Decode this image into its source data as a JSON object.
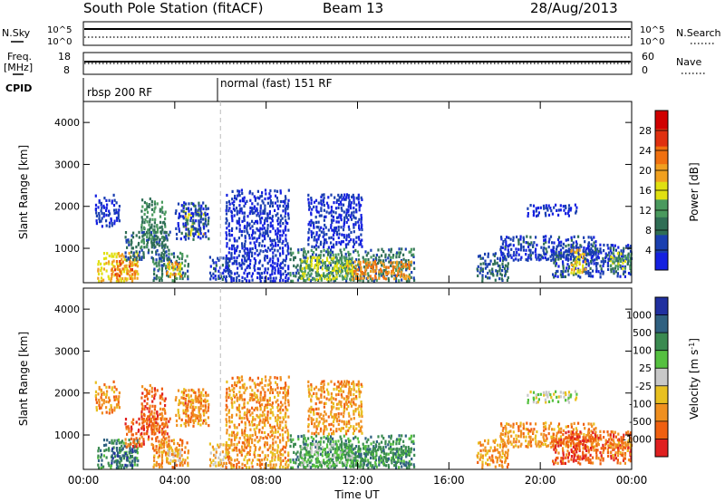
{
  "header": {
    "title": "South Pole Station (fitACF)",
    "beam": "Beam 13",
    "date": "28/Aug/2013"
  },
  "top_panels": {
    "noise": {
      "left_label": "N.Sky",
      "right_label": "N.Search",
      "left_ticks": [
        "10^5",
        "10^0"
      ],
      "right_ticks": [
        "10^5",
        "10^0"
      ]
    },
    "freq": {
      "left_label_1": "Freq.",
      "left_label_2": "[MHz]",
      "right_label": "Nave",
      "left_ticks": [
        "18",
        "8"
      ],
      "right_ticks": [
        "60",
        "0"
      ]
    },
    "cpid": {
      "label": "CPID",
      "segments": [
        {
          "start_hour": 0,
          "label": "rbsp 200 RF"
        },
        {
          "start_hour": 6,
          "label": "normal (fast) 151 RF"
        }
      ]
    }
  },
  "colors": {
    "power_scale": [
      "#1420e0",
      "#1a3fb0",
      "#2f6e55",
      "#4a9a5e",
      "#e0e010",
      "#f0a020",
      "#f07010",
      "#e03010",
      "#d00000"
    ],
    "velocity_scale": [
      "#2030a0",
      "#2f6080",
      "#3a8a50",
      "#55c040",
      "#c8c8c8",
      "#e8c020",
      "#f09020",
      "#f06010",
      "#e02020"
    ]
  },
  "chart_data": [
    {
      "type": "heatmap",
      "name": "power",
      "ylabel": "Slant Range [km]",
      "xlabel": "",
      "xlim": [
        0,
        24
      ],
      "ylim": [
        180,
        4500
      ],
      "y_ticks": [
        "1000",
        "2000",
        "3000",
        "4000"
      ],
      "x_ticks": [
        "00:00",
        "04:00",
        "08:00",
        "12:00",
        "16:00",
        "20:00",
        "00:00"
      ],
      "colorbar": {
        "label": "Power [dB]",
        "range": [
          0,
          32
        ],
        "ticks": [
          "4",
          "8",
          "12",
          "16",
          "20",
          "24",
          "28"
        ]
      },
      "regions": [
        {
          "t0": 0.5,
          "t1": 1.6,
          "r0": 1500,
          "r1": 2300,
          "v": 4
        },
        {
          "t0": 0.6,
          "t1": 2.4,
          "r0": 200,
          "r1": 900,
          "v": 20
        },
        {
          "t0": 1.2,
          "t1": 2.3,
          "r0": 250,
          "r1": 700,
          "v": 26
        },
        {
          "t0": 1.8,
          "t1": 3.8,
          "r0": 700,
          "r1": 1400,
          "v": 8
        },
        {
          "t0": 2.5,
          "t1": 3.6,
          "r0": 1000,
          "r1": 2200,
          "v": 12
        },
        {
          "t0": 3.0,
          "t1": 4.6,
          "r0": 200,
          "r1": 900,
          "v": 10
        },
        {
          "t0": 3.6,
          "t1": 4.3,
          "r0": 300,
          "r1": 700,
          "v": 22
        },
        {
          "t0": 4.4,
          "t1": 5.3,
          "r0": 1300,
          "r1": 1900,
          "v": 18
        },
        {
          "t0": 4.0,
          "t1": 5.5,
          "r0": 1200,
          "r1": 2100,
          "v": 6
        },
        {
          "t0": 5.5,
          "t1": 6.5,
          "r0": 250,
          "r1": 800,
          "v": 5
        },
        {
          "t0": 6.2,
          "t1": 9.0,
          "r0": 200,
          "r1": 2400,
          "v": 4
        },
        {
          "t0": 9.0,
          "t1": 14.5,
          "r0": 200,
          "r1": 1000,
          "v": 10
        },
        {
          "t0": 11.5,
          "t1": 14.4,
          "r0": 250,
          "r1": 700,
          "v": 24
        },
        {
          "t0": 9.5,
          "t1": 11.8,
          "r0": 250,
          "r1": 800,
          "v": 16
        },
        {
          "t0": 9.8,
          "t1": 12.2,
          "r0": 1000,
          "r1": 2300,
          "v": 4
        },
        {
          "t0": 17.2,
          "t1": 18.6,
          "r0": 200,
          "r1": 900,
          "v": 8
        },
        {
          "t0": 18.2,
          "t1": 22.5,
          "r0": 700,
          "r1": 1300,
          "v": 5
        },
        {
          "t0": 19.4,
          "t1": 21.6,
          "r0": 1750,
          "r1": 2050,
          "v": 4
        },
        {
          "t0": 20.5,
          "t1": 24.0,
          "r0": 300,
          "r1": 1100,
          "v": 6
        },
        {
          "t0": 21.3,
          "t1": 22.0,
          "r0": 400,
          "r1": 1000,
          "v": 20
        },
        {
          "t0": 23.0,
          "t1": 24.0,
          "r0": 500,
          "r1": 900,
          "v": 14
        }
      ]
    },
    {
      "type": "heatmap",
      "name": "velocity",
      "ylabel": "Slant Range [km]",
      "xlabel": "Time UT",
      "xlim": [
        0,
        24
      ],
      "ylim": [
        180,
        4500
      ],
      "y_ticks": [
        "1000",
        "2000",
        "3000",
        "4000"
      ],
      "x_ticks": [
        "00:00",
        "04:00",
        "08:00",
        "12:00",
        "16:00",
        "20:00",
        "00:00"
      ],
      "colorbar": {
        "label": "Velocity [m s^-1]",
        "ticks": [
          "1000",
          "500",
          "100",
          "25",
          "-25",
          "-100",
          "-500",
          "-1000"
        ]
      },
      "regions": [
        {
          "t0": 0.5,
          "t1": 1.6,
          "r0": 1500,
          "r1": 2300,
          "v": 6
        },
        {
          "t0": 0.6,
          "t1": 2.4,
          "r0": 200,
          "r1": 900,
          "v": 2
        },
        {
          "t0": 1.2,
          "t1": 2.3,
          "r0": 250,
          "r1": 700,
          "v": 1
        },
        {
          "t0": 1.8,
          "t1": 3.8,
          "r0": 700,
          "r1": 1400,
          "v": 7
        },
        {
          "t0": 2.5,
          "t1": 3.6,
          "r0": 1000,
          "r1": 2200,
          "v": 7
        },
        {
          "t0": 3.0,
          "t1": 4.6,
          "r0": 200,
          "r1": 900,
          "v": 6
        },
        {
          "t0": 3.6,
          "t1": 4.3,
          "r0": 300,
          "r1": 700,
          "v": 5
        },
        {
          "t0": 4.4,
          "t1": 5.3,
          "r0": 1300,
          "r1": 1900,
          "v": 7
        },
        {
          "t0": 4.0,
          "t1": 5.5,
          "r0": 1200,
          "r1": 2100,
          "v": 6
        },
        {
          "t0": 5.5,
          "t1": 6.5,
          "r0": 250,
          "r1": 800,
          "v": 5
        },
        {
          "t0": 6.2,
          "t1": 9.0,
          "r0": 200,
          "r1": 2400,
          "v": 6
        },
        {
          "t0": 9.0,
          "t1": 14.5,
          "r0": 200,
          "r1": 1000,
          "v": 2
        },
        {
          "t0": 11.5,
          "t1": 14.4,
          "r0": 250,
          "r1": 700,
          "v": 2
        },
        {
          "t0": 9.5,
          "t1": 11.8,
          "r0": 250,
          "r1": 800,
          "v": 3
        },
        {
          "t0": 9.8,
          "t1": 12.2,
          "r0": 1000,
          "r1": 2300,
          "v": 6
        },
        {
          "t0": 17.2,
          "t1": 18.6,
          "r0": 200,
          "r1": 900,
          "v": 6
        },
        {
          "t0": 18.2,
          "t1": 22.5,
          "r0": 700,
          "r1": 1300,
          "v": 6
        },
        {
          "t0": 19.4,
          "t1": 21.6,
          "r0": 1750,
          "r1": 2050,
          "v": 4
        },
        {
          "t0": 20.5,
          "t1": 24.0,
          "r0": 300,
          "r1": 1100,
          "v": 7
        },
        {
          "t0": 21.3,
          "t1": 22.0,
          "r0": 400,
          "r1": 1000,
          "v": 8
        },
        {
          "t0": 23.0,
          "t1": 24.0,
          "r0": 500,
          "r1": 900,
          "v": 6
        }
      ]
    }
  ]
}
